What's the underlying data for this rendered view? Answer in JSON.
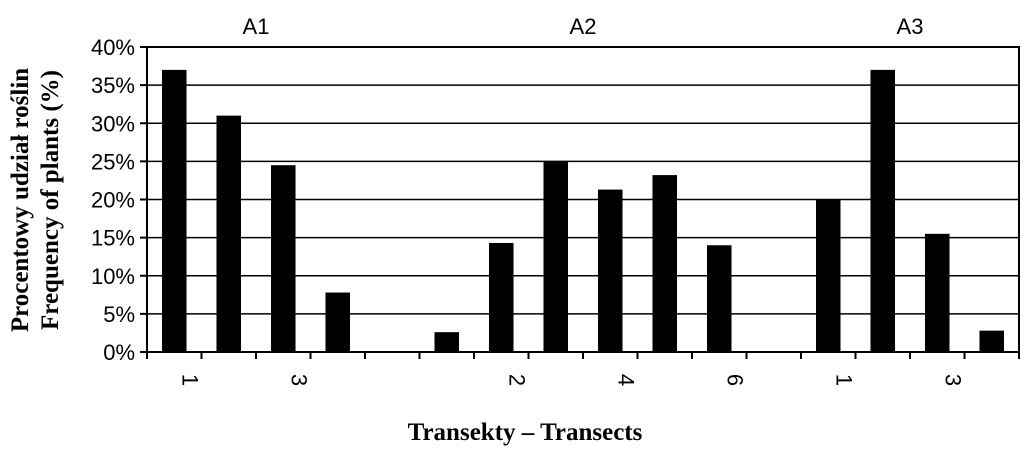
{
  "chart_data": {
    "type": "bar",
    "xlabel": "Transekty – Transects",
    "ylabel_lines": [
      "Procentowy udział roślin",
      "Frequency of plants (%)"
    ],
    "ylim": [
      0,
      40
    ],
    "yticks": [
      "0%",
      "5%",
      "10%",
      "15%",
      "20%",
      "25%",
      "30%",
      "35%",
      "40%"
    ],
    "grid": true,
    "legend": "none",
    "bar_color": "#000000",
    "x_tick_labels": [
      "1",
      "",
      "3",
      "",
      "",
      "",
      "2",
      "",
      "4",
      "",
      "6",
      "",
      "1",
      "",
      "3",
      ""
    ],
    "groups": [
      {
        "label": "A1",
        "values": [
          37,
          31,
          24.5,
          7.8
        ]
      },
      {
        "label": "A2",
        "values": [
          2.6,
          14.3,
          25,
          21.3,
          23.2,
          14
        ]
      },
      {
        "label": "A3",
        "values": [
          20,
          37,
          15.5,
          2.8
        ]
      }
    ]
  }
}
